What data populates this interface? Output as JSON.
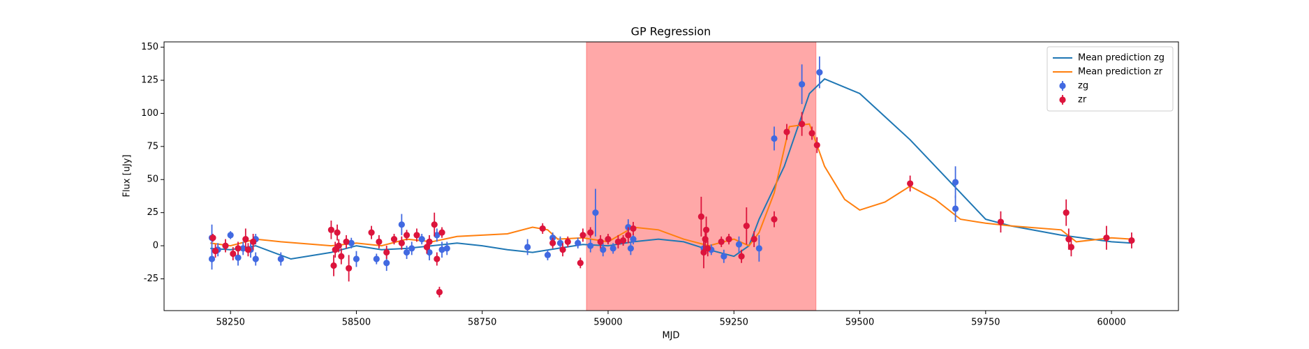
{
  "chart_data": {
    "type": "scatter",
    "title": "GP Regression",
    "x_label": "MJD",
    "y_label": "Flux [uJy]",
    "xlim": [
      58118,
      60133
    ],
    "ylim": [
      -49,
      154
    ],
    "xticks": [
      58250,
      58500,
      58750,
      59000,
      59250,
      59500,
      59750,
      60000
    ],
    "yticks": [
      -25,
      0,
      25,
      50,
      75,
      100,
      125,
      150
    ],
    "grid": false,
    "legend": "upper right",
    "shade": {
      "x": [
        58957,
        59413
      ],
      "color": "#ff0000",
      "alpha": 0.34
    },
    "series": [
      {
        "name": "Mean prediction zg",
        "kind": "line",
        "color": "#1f77b4",
        "x": [
          58210,
          58250,
          58300,
          58370,
          58450,
          58500,
          58550,
          58600,
          58650,
          58700,
          58750,
          58800,
          58850,
          58900,
          58950,
          59000,
          59050,
          59100,
          59150,
          59200,
          59250,
          59280,
          59300,
          59350,
          59400,
          59430,
          59500,
          59600,
          59700,
          59750,
          59800,
          59900,
          60000,
          60040
        ],
        "values": [
          -2,
          -3,
          0,
          -10,
          -5,
          0,
          -3,
          -2,
          0,
          2,
          0,
          -3,
          -5,
          -2,
          1,
          0,
          3,
          5,
          3,
          -3,
          -8,
          0,
          20,
          60,
          115,
          126,
          115,
          80,
          40,
          20,
          15,
          8,
          3,
          2
        ]
      },
      {
        "name": "Mean prediction zr",
        "kind": "line",
        "color": "#ff7f0e",
        "x": [
          58210,
          58250,
          58300,
          58350,
          58450,
          58500,
          58550,
          58600,
          58650,
          58700,
          58800,
          58850,
          58880,
          58900,
          58950,
          59000,
          59050,
          59100,
          59150,
          59200,
          59250,
          59280,
          59300,
          59330,
          59360,
          59400,
          59430,
          59470,
          59500,
          59550,
          59600,
          59650,
          59700,
          59750,
          59800,
          59900,
          59930,
          60000,
          60040
        ],
        "values": [
          2,
          0,
          5,
          3,
          0,
          2,
          0,
          5,
          3,
          7,
          9,
          14,
          12,
          5,
          6,
          3,
          14,
          12,
          5,
          0,
          5,
          0,
          10,
          40,
          90,
          92,
          60,
          35,
          27,
          33,
          45,
          35,
          20,
          17,
          15,
          12,
          3,
          6,
          5
        ]
      },
      {
        "name": "zg",
        "kind": "errorbar",
        "color": "#4169e1",
        "x": [
          58213,
          58213,
          58225,
          58250,
          58265,
          58275,
          58290,
          58300,
          58300,
          58350,
          58490,
          58500,
          58540,
          58560,
          58590,
          58600,
          58610,
          58630,
          58645,
          58660,
          58670,
          58680,
          58840,
          58880,
          58890,
          58905,
          58940,
          58965,
          58975,
          58990,
          59010,
          59040,
          59045,
          59050,
          59190,
          59205,
          59230,
          59260,
          59300,
          59330,
          59385,
          59420,
          59690,
          59690
        ],
        "values": [
          -10,
          6,
          -3,
          8,
          -9,
          -2,
          -3,
          -10,
          5,
          -10,
          2,
          -10,
          -10,
          -13,
          16,
          -5,
          -2,
          5,
          -5,
          8,
          -3,
          -2,
          -1,
          -7,
          6,
          2,
          2,
          0,
          25,
          -3,
          -2,
          14,
          -2,
          5,
          -2,
          -3,
          -8,
          1,
          -2,
          81,
          122,
          131,
          48,
          28
        ],
        "errors": [
          8,
          10,
          5,
          3,
          6,
          5,
          6,
          5,
          4,
          5,
          4,
          6,
          4,
          6,
          8,
          5,
          5,
          4,
          6,
          5,
          6,
          5,
          6,
          4,
          4,
          5,
          4,
          5,
          18,
          5,
          4,
          6,
          5,
          4,
          5,
          4,
          5,
          6,
          10,
          9,
          15,
          12,
          12,
          10
        ]
      },
      {
        "name": "zr",
        "kind": "errorbar",
        "color": "#dc143c",
        "x": [
          58215,
          58220,
          58240,
          58255,
          58265,
          58280,
          58285,
          58295,
          58450,
          58455,
          58458,
          58462,
          58465,
          58470,
          58480,
          58485,
          58530,
          58545,
          58560,
          58575,
          58590,
          58600,
          58620,
          58640,
          58645,
          58655,
          58660,
          58665,
          58670,
          58870,
          58890,
          58910,
          58920,
          58945,
          58950,
          58965,
          58985,
          59000,
          59020,
          59030,
          59040,
          59050,
          59185,
          59190,
          59193,
          59195,
          59198,
          59225,
          59240,
          59265,
          59275,
          59290,
          59330,
          59355,
          59385,
          59405,
          59415,
          59600,
          59780,
          59910,
          59915,
          59920,
          59990,
          60040
        ],
        "values": [
          6,
          -4,
          0,
          -6,
          -2,
          5,
          -3,
          3,
          12,
          -15,
          -3,
          10,
          0,
          -8,
          3,
          -17,
          10,
          3,
          -5,
          5,
          2,
          8,
          8,
          -1,
          3,
          16,
          -10,
          -35,
          10,
          13,
          2,
          -3,
          3,
          -13,
          8,
          10,
          3,
          5,
          3,
          4,
          8,
          13,
          22,
          -5,
          5,
          12,
          -2,
          3,
          5,
          -8,
          15,
          5,
          20,
          86,
          92,
          85,
          76,
          47,
          18,
          25,
          5,
          -1,
          6,
          4
        ],
        "errors": [
          3,
          5,
          5,
          5,
          5,
          8,
          5,
          6,
          7,
          8,
          6,
          6,
          5,
          6,
          5,
          10,
          5,
          5,
          5,
          4,
          5,
          4,
          5,
          5,
          5,
          9,
          5,
          4,
          4,
          4,
          4,
          5,
          4,
          4,
          5,
          4,
          5,
          4,
          5,
          4,
          6,
          5,
          15,
          12,
          8,
          10,
          6,
          4,
          4,
          5,
          14,
          6,
          6,
          6,
          9,
          5,
          6,
          6,
          8,
          10,
          8,
          7,
          9,
          6
        ]
      }
    ]
  }
}
